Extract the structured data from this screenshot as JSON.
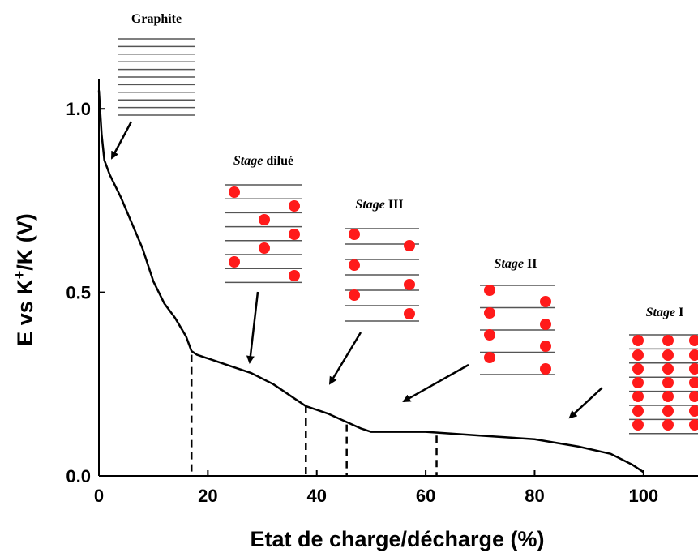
{
  "chart_data": {
    "type": "line",
    "xlabel": "Etat de charge/décharge (%)",
    "ylabel_parts": [
      "E vs K",
      "+",
      "/K (V)"
    ],
    "x": [
      0,
      0.5,
      1,
      2,
      4,
      6,
      8,
      10,
      12,
      14,
      16,
      17,
      18,
      20,
      24,
      28,
      32,
      36,
      38,
      42,
      45,
      48,
      50,
      60,
      70,
      80,
      88,
      94,
      98,
      100
    ],
    "series": [
      {
        "color": "#000000",
        "values": [
          1.05,
          0.93,
          0.86,
          0.82,
          0.76,
          0.69,
          0.62,
          0.53,
          0.47,
          0.43,
          0.38,
          0.34,
          0.33,
          0.32,
          0.3,
          0.28,
          0.25,
          0.21,
          0.19,
          0.17,
          0.15,
          0.13,
          0.12,
          0.12,
          0.11,
          0.1,
          0.08,
          0.06,
          0.03,
          0.01
        ]
      }
    ],
    "xlim": [
      0,
      110
    ],
    "ylim": [
      0,
      1.08
    ],
    "xticks": [
      0,
      20,
      40,
      60,
      80,
      100
    ],
    "yticks": [
      {
        "value": 0,
        "label": "0.0"
      },
      0.5,
      {
        "value": 1,
        "label": "1.0"
      }
    ],
    "dividers": [
      {
        "x": 17,
        "y": 0.33
      },
      {
        "x": 38,
        "y": 0.19
      },
      {
        "x": 45.5,
        "y": 0.14
      },
      {
        "x": 62,
        "y": 0.11
      }
    ],
    "annotations": [
      {
        "text": "Graphite"
      },
      {
        "italic": "Stage",
        "text": "dilué"
      },
      {
        "italic": "Stage",
        "text": "III"
      },
      {
        "italic": "Stage",
        "text": "II"
      },
      {
        "italic": "Stage",
        "text": "I"
      }
    ]
  }
}
